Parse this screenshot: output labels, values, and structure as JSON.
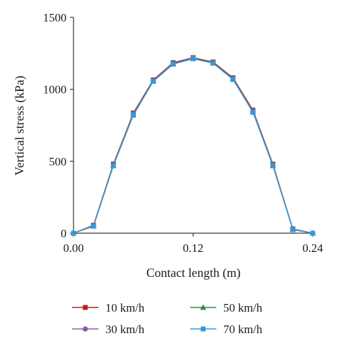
{
  "chart_data": {
    "type": "line",
    "title": "",
    "xlabel": "Contact length (m)",
    "ylabel": "Vertical stress (kPa)",
    "xlim": [
      0,
      0.24
    ],
    "ylim": [
      0,
      1500
    ],
    "x_ticks": [
      "0.00",
      "0.12",
      "0.24"
    ],
    "y_ticks": [
      "0",
      "500",
      "1000",
      "1500"
    ],
    "x": [
      0,
      0.02,
      0.04,
      0.06,
      0.08,
      0.1,
      0.12,
      0.14,
      0.16,
      0.18,
      0.2,
      0.22,
      0.24
    ],
    "grid": false,
    "legend_position": "bottom",
    "series": [
      {
        "name": "10 km/h",
        "color": "#b22222",
        "marker": "square",
        "values": [
          0,
          55,
          480,
          835,
          1065,
          1185,
          1220,
          1190,
          1080,
          855,
          480,
          30,
          0
        ]
      },
      {
        "name": "30 km/h",
        "color": "#8c5aa8",
        "marker": "circle",
        "values": [
          0,
          52,
          475,
          828,
          1060,
          1180,
          1217,
          1186,
          1075,
          848,
          475,
          28,
          0
        ]
      },
      {
        "name": "50 km/h",
        "color": "#3a8a3a",
        "marker": "triangle",
        "values": [
          0,
          50,
          472,
          824,
          1058,
          1178,
          1215,
          1184,
          1072,
          845,
          472,
          26,
          0
        ]
      },
      {
        "name": "70 km/h",
        "color": "#3399dd",
        "marker": "square",
        "values": [
          0,
          48,
          468,
          820,
          1055,
          1175,
          1212,
          1181,
          1068,
          840,
          468,
          24,
          0
        ]
      }
    ]
  }
}
